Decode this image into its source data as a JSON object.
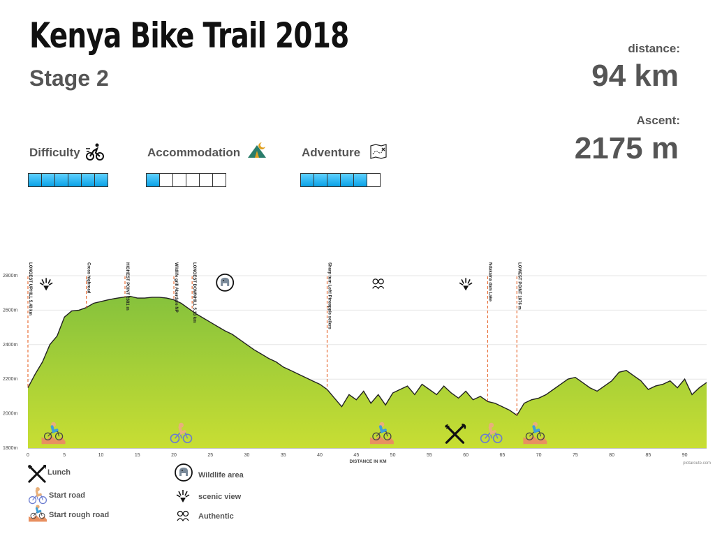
{
  "header": {
    "title": "Kenya Bike Trail 2018",
    "stage": "Stage 2"
  },
  "stats": {
    "distance_label": "distance:",
    "distance_value": "94 km",
    "ascent_label": "Ascent:",
    "ascent_value": "2175 m"
  },
  "ratings": [
    {
      "label": "Difficulty",
      "icon": "cyclist-icon",
      "value": 6,
      "max": 6
    },
    {
      "label": "Accommodation",
      "icon": "tent-moon-icon",
      "value": 1,
      "max": 6
    },
    {
      "label": "Adventure",
      "icon": "treasure-map-icon",
      "value": 5,
      "max": 6
    }
  ],
  "chart_data": {
    "type": "area",
    "xlabel": "DISTANCE IN KM",
    "ylabel": "",
    "xlim": [
      0,
      93
    ],
    "ylim": [
      1800,
      2800
    ],
    "x_ticks": [
      0,
      5,
      10,
      15,
      20,
      25,
      30,
      35,
      40,
      45,
      50,
      55,
      60,
      65,
      70,
      75,
      80,
      85,
      90
    ],
    "y_ticks": [
      1800,
      2000,
      2200,
      2400,
      2600,
      2800
    ],
    "y_tick_labels": [
      "1800m",
      "2000m",
      "2200m",
      "2400m",
      "2600m",
      "2800m"
    ],
    "grid": true,
    "series": [
      {
        "x": [
          0,
          1,
          2,
          3,
          4,
          5,
          6,
          7,
          8,
          9,
          10,
          11,
          12,
          13,
          14,
          15,
          16,
          17,
          18,
          19,
          20,
          21,
          22,
          23,
          24,
          25,
          26,
          27,
          28,
          29,
          30,
          31,
          32,
          33,
          34,
          35,
          36,
          37,
          38,
          39,
          40,
          41,
          42,
          43,
          44,
          45,
          46,
          47,
          48,
          49,
          50,
          51,
          52,
          53,
          54,
          55,
          56,
          57,
          58,
          59,
          60,
          61,
          62,
          63,
          64,
          65,
          66,
          67,
          68,
          69,
          70,
          71,
          72,
          73,
          74,
          75,
          76,
          77,
          78,
          79,
          80,
          81,
          82,
          83,
          84,
          85,
          86,
          87,
          88,
          89,
          90,
          91,
          92,
          93
        ],
        "values": [
          2150,
          2230,
          2300,
          2400,
          2450,
          2560,
          2595,
          2600,
          2615,
          2640,
          2650,
          2660,
          2668,
          2675,
          2680,
          2670,
          2670,
          2675,
          2675,
          2670,
          2660,
          2640,
          2610,
          2580,
          2555,
          2530,
          2505,
          2480,
          2460,
          2430,
          2400,
          2370,
          2345,
          2320,
          2300,
          2270,
          2250,
          2230,
          2210,
          2190,
          2170,
          2140,
          2090,
          2040,
          2110,
          2080,
          2130,
          2060,
          2110,
          2050,
          2120,
          2140,
          2160,
          2110,
          2170,
          2140,
          2110,
          2160,
          2120,
          2090,
          2130,
          2080,
          2100,
          2070,
          2060,
          2040,
          2020,
          1990,
          2060,
          2080,
          2090,
          2110,
          2140,
          2170,
          2200,
          2210,
          2180,
          2150,
          2130,
          2160,
          2190,
          2240,
          2250,
          2220,
          2190,
          2140,
          2160,
          2170,
          2190,
          2150,
          2200,
          2110,
          2150,
          2180
        ]
      }
    ],
    "annotations": [
      {
        "x": 0,
        "label": "LONGEST UPHILL 5.40 km"
      },
      {
        "x": 8,
        "label": "Cross highroad"
      },
      {
        "x": 13.3,
        "label": "HIGHEST POINT 2681 m"
      },
      {
        "x": 20,
        "label": "Wildlife grill Aberdare NP"
      },
      {
        "x": 22.5,
        "label": "LONGEST DOWNHILL 5.13 km"
      },
      {
        "x": 41,
        "label": "Sharp turn Left! Pineapple sellers"
      },
      {
        "x": 63,
        "label": "Ndakaina dam Lake"
      },
      {
        "x": 67,
        "label": "LOWEST POINT 1976 m"
      }
    ],
    "icons": [
      {
        "x": 2.5,
        "y": 2750,
        "name": "scenic-view-icon"
      },
      {
        "x": 27,
        "y": 2760,
        "name": "wildlife-area-icon"
      },
      {
        "x": 48,
        "y": 2750,
        "name": "authentic-icon"
      },
      {
        "x": 60,
        "y": 2750,
        "name": "scenic-view-icon"
      },
      {
        "x": 3.5,
        "y": 1880,
        "name": "start-rough-road-icon"
      },
      {
        "x": 21,
        "y": 1880,
        "name": "start-road-icon"
      },
      {
        "x": 48.5,
        "y": 1880,
        "name": "start-rough-road-icon"
      },
      {
        "x": 58.5,
        "y": 1880,
        "name": "lunch-icon"
      },
      {
        "x": 63.5,
        "y": 1880,
        "name": "start-road-icon"
      },
      {
        "x": 69.5,
        "y": 1880,
        "name": "start-rough-road-icon"
      }
    ],
    "watermark": "plotaroute.com",
    "colors": {
      "fill_top": "#8cc43c",
      "fill_bottom": "#c6dd34",
      "line": "#222222",
      "marker": "#e8703a"
    }
  },
  "legend": [
    {
      "label": "Lunch",
      "icon": "lunch-icon"
    },
    {
      "label": "Start road",
      "icon": "start-road-icon"
    },
    {
      "label": "Start rough road",
      "icon": "start-rough-road-icon"
    },
    {
      "label": "Wildlife area",
      "icon": "wildlife-area-icon"
    },
    {
      "label": "scenic view",
      "icon": "scenic-view-icon"
    },
    {
      "label": "Authentic",
      "icon": "authentic-icon"
    }
  ]
}
